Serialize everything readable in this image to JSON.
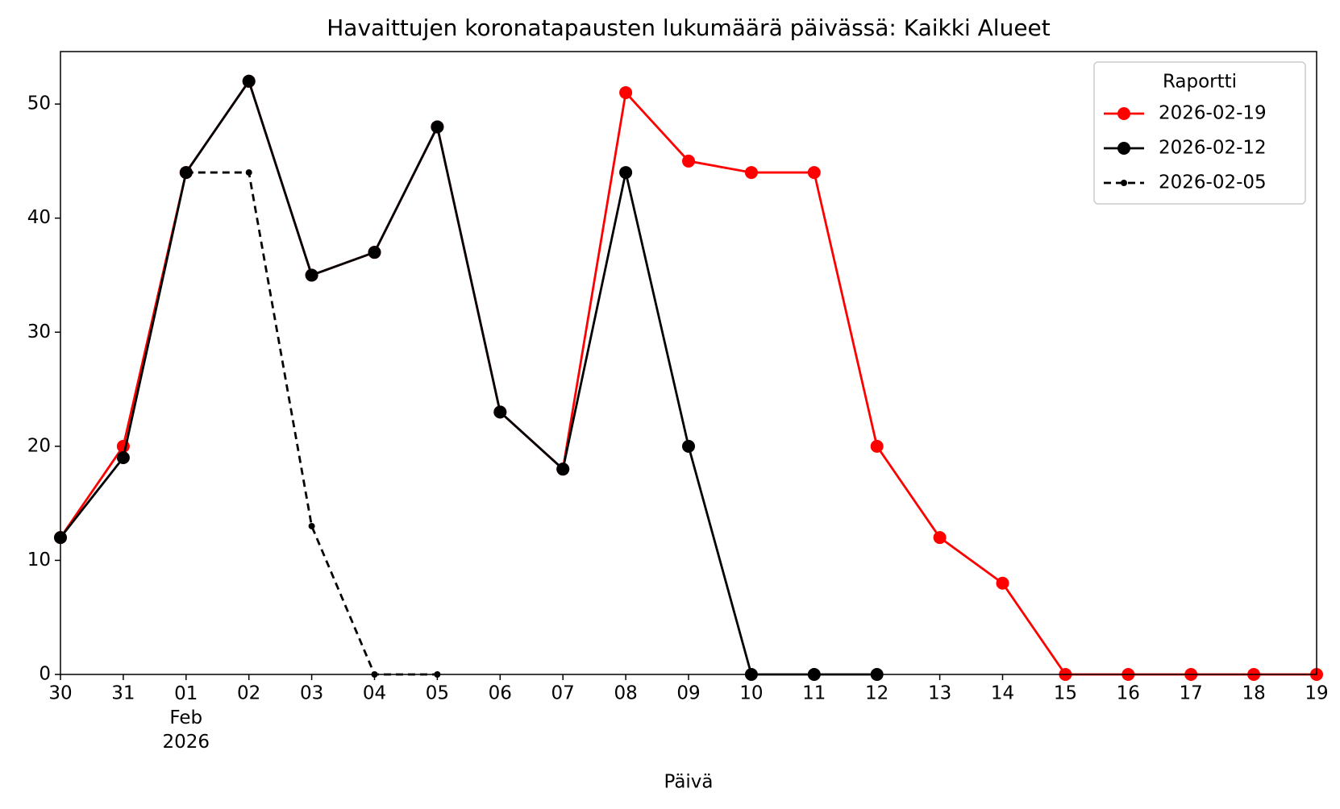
{
  "chart_data": {
    "type": "line",
    "title": "Havaittujen koronatapausten lukumäärä päivässä: Kaikki Alueet",
    "xlabel": "Päivä",
    "categories": [
      "30",
      "31",
      "01\nFeb\n2026",
      "02",
      "03",
      "04",
      "05",
      "06",
      "07",
      "08",
      "09",
      "10",
      "11",
      "12",
      "13",
      "14",
      "15",
      "16",
      "17",
      "18",
      "19"
    ],
    "series": [
      {
        "name": "2026-02-19",
        "color": "#ff0000",
        "style": "solid",
        "marker": "large",
        "values": [
          12,
          20,
          44,
          52,
          35,
          37,
          48,
          23,
          18,
          51,
          45,
          44,
          44,
          20,
          12,
          8,
          0,
          0,
          0,
          0,
          0
        ]
      },
      {
        "name": "2026-02-12",
        "color": "#000000",
        "style": "solid",
        "marker": "large",
        "values": [
          12,
          19,
          44,
          52,
          35,
          37,
          48,
          23,
          18,
          44,
          20,
          0,
          0,
          0,
          null,
          null,
          null,
          null,
          null,
          null,
          null
        ]
      },
      {
        "name": "2026-02-05",
        "color": "#000000",
        "style": "dashed",
        "marker": "small",
        "values": [
          null,
          null,
          44,
          44,
          13,
          0,
          0,
          null,
          null,
          null,
          null,
          null,
          null,
          null,
          null,
          null,
          null,
          null,
          null,
          null,
          null
        ]
      }
    ],
    "ylim": [
      0,
      54.6
    ],
    "yticks": [
      0,
      10,
      20,
      30,
      40,
      50
    ],
    "legend_title": "Raportti",
    "legend_loc": "upper right",
    "grid": false
  }
}
